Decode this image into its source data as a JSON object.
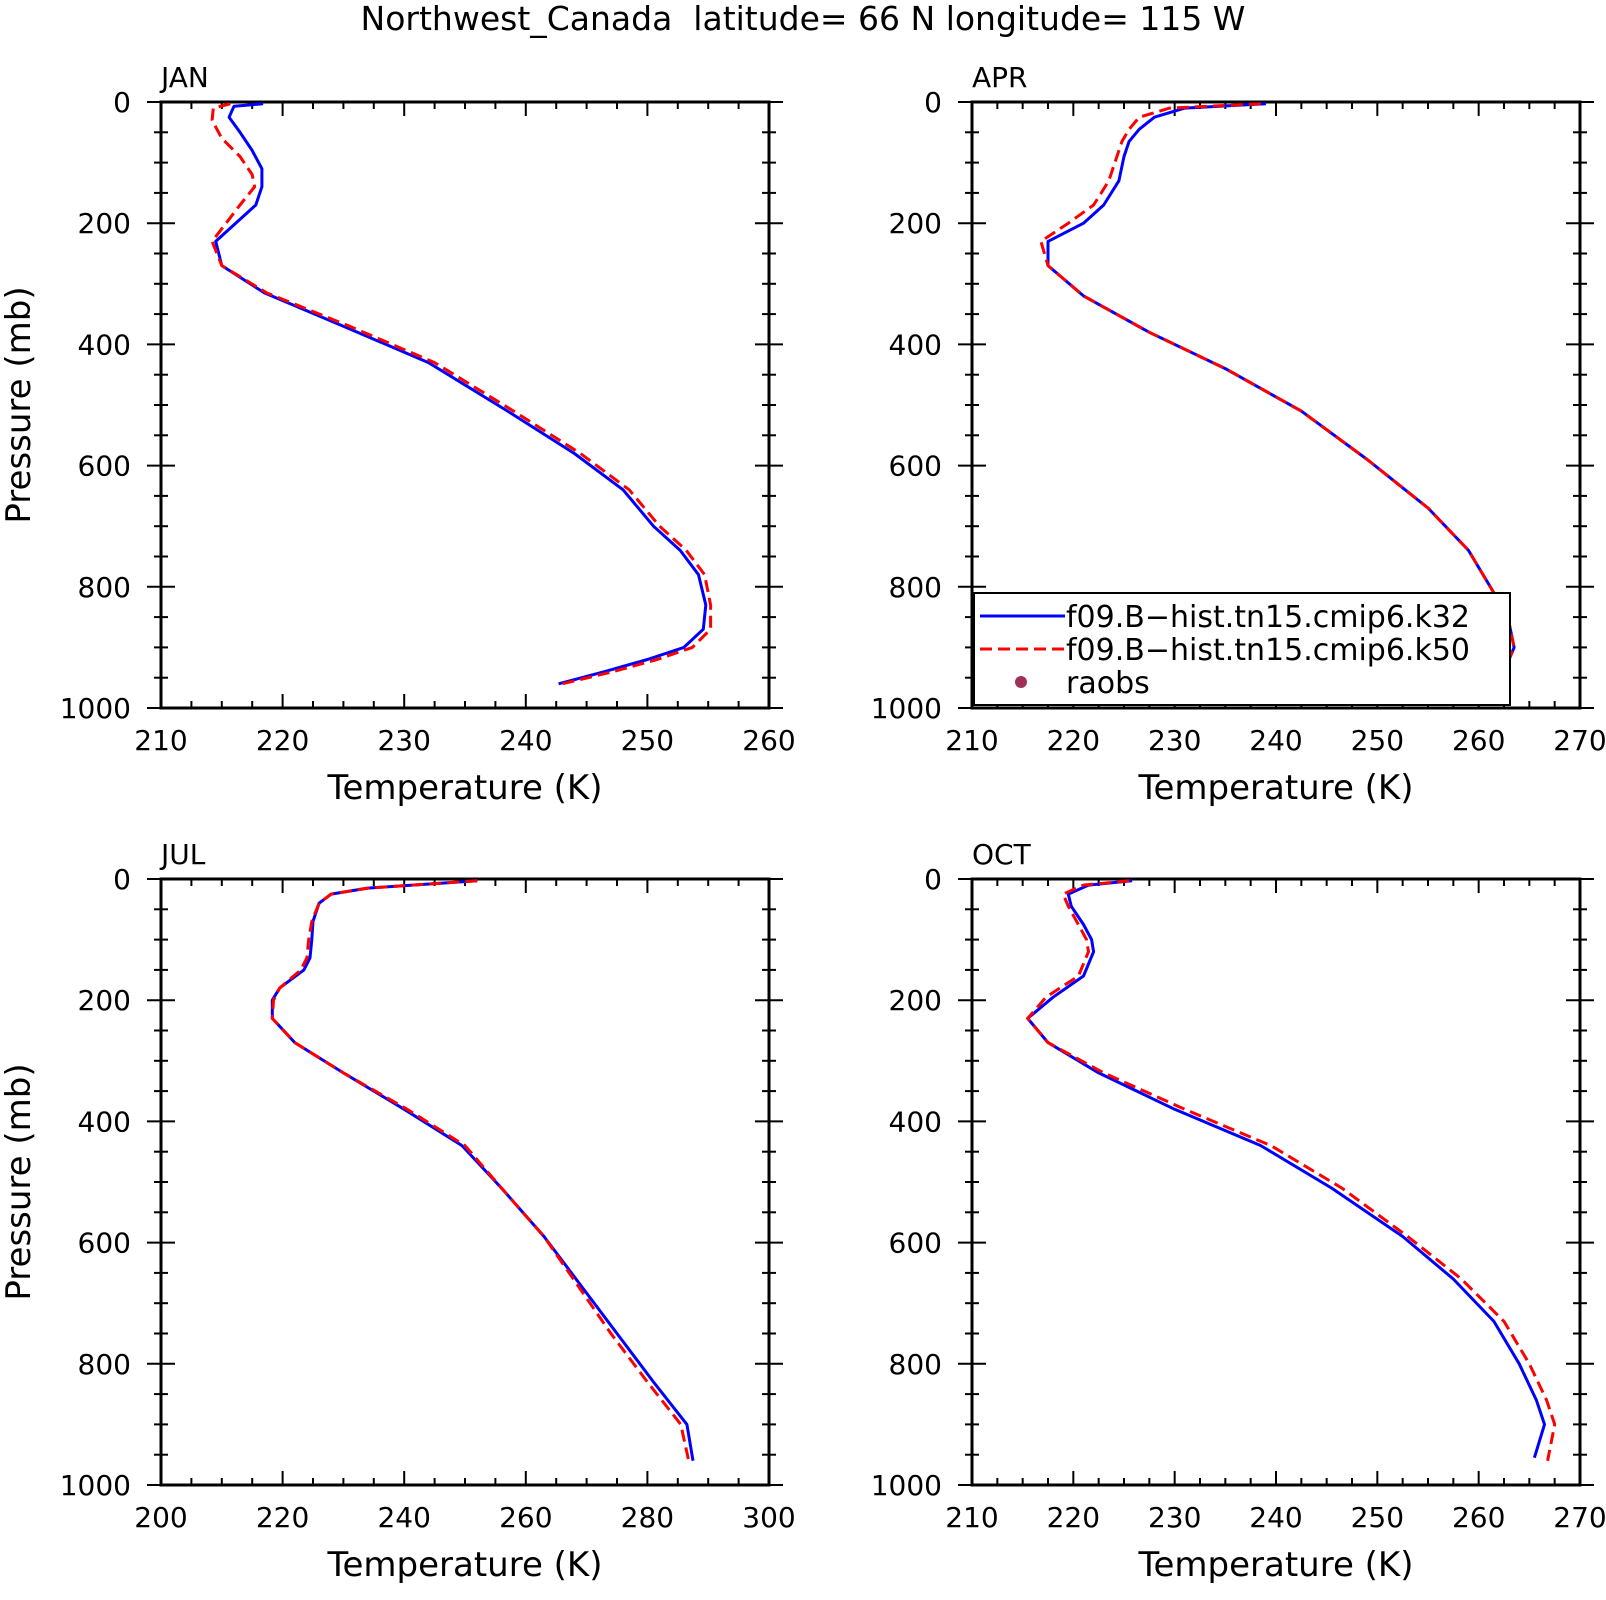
{
  "page_title": "Northwest_Canada  latitude= 66 N longitude= 115 W",
  "legend": {
    "entries": [
      {
        "label": "f09.B−hist.tn15.cmip6.k32",
        "color": "#0000ff",
        "style": "solid"
      },
      {
        "label": "f09.B−hist.tn15.cmip6.k50",
        "color": "#ff0000",
        "style": "dashed"
      },
      {
        "label": "raobs",
        "color": "#a0305a",
        "style": "marker"
      }
    ]
  },
  "chart_data": [
    {
      "type": "line",
      "title": "JAN",
      "xlabel": "Temperature (K)",
      "ylabel": "Pressure (mb)",
      "xlim": [
        210,
        260
      ],
      "ylim": [
        0,
        1000
      ],
      "y_inverted": true,
      "xticks": [
        210,
        220,
        230,
        240,
        250,
        260
      ],
      "yticks": [
        0,
        200,
        400,
        600,
        800,
        1000
      ],
      "series": [
        {
          "name": "f09.B−hist.tn15.cmip6.k32",
          "color": "#0000ff",
          "dash": false,
          "x": [
            218.4,
            216.0,
            215.6,
            216.5,
            217.5,
            218.3,
            218.3,
            217.8,
            214.5,
            215.0,
            218.5,
            225.0,
            232.0,
            238.5,
            244.0,
            248.0,
            250.5,
            252.7,
            254.2,
            254.8,
            254.6,
            253.0,
            250.0,
            246.5,
            242.7
          ],
          "y": [
            3,
            7,
            25,
            50,
            80,
            110,
            140,
            170,
            230,
            270,
            315,
            370,
            430,
            510,
            580,
            640,
            700,
            740,
            780,
            830,
            870,
            900,
            920,
            940,
            960
          ]
        },
        {
          "name": "f09.B−hist.tn15.cmip6.k50",
          "color": "#ff0000",
          "dash": true,
          "x": [
            215.7,
            214.3,
            214.2,
            215.0,
            216.5,
            217.5,
            217.7,
            216.5,
            214.2,
            215.0,
            218.7,
            225.5,
            232.5,
            239.0,
            244.5,
            248.5,
            251.0,
            253.2,
            254.7,
            255.2,
            255.2,
            253.7,
            250.8,
            247.2,
            243.0
          ],
          "y": [
            3,
            10,
            30,
            60,
            90,
            120,
            140,
            170,
            230,
            270,
            315,
            370,
            430,
            510,
            580,
            640,
            700,
            740,
            780,
            830,
            870,
            900,
            920,
            940,
            960
          ]
        }
      ]
    },
    {
      "type": "line",
      "title": "APR",
      "xlabel": "Temperature (K)",
      "ylabel": "",
      "xlim": [
        210,
        270
      ],
      "ylim": [
        0,
        1000
      ],
      "y_inverted": true,
      "xticks": [
        210,
        220,
        230,
        240,
        250,
        260,
        270
      ],
      "yticks": [
        0,
        200,
        400,
        600,
        800,
        1000
      ],
      "series": [
        {
          "name": "f09.B−hist.tn15.cmip6.k32",
          "color": "#0000ff",
          "dash": false,
          "x": [
            239.0,
            231.0,
            228.0,
            226.5,
            225.5,
            225.0,
            224.5,
            223.0,
            221.0,
            217.5,
            217.5,
            221.0,
            227.5,
            235.0,
            242.5,
            249.0,
            255.0,
            259.0,
            261.5,
            263.0,
            263.5,
            262.5,
            260.0
          ],
          "y": [
            3,
            10,
            25,
            45,
            65,
            90,
            130,
            170,
            200,
            230,
            270,
            320,
            380,
            440,
            510,
            590,
            670,
            740,
            810,
            860,
            900,
            940,
            965
          ]
        },
        {
          "name": "f09.B−hist.tn15.cmip6.k50",
          "color": "#ff0000",
          "dash": true,
          "x": [
            238.5,
            229.5,
            226.5,
            225.5,
            224.8,
            224.3,
            223.5,
            222.0,
            219.5,
            216.8,
            217.5,
            221.0,
            227.5,
            235.0,
            242.5,
            249.0,
            255.0,
            259.0,
            261.5,
            263.0,
            263.5,
            262.5,
            260.0
          ],
          "y": [
            3,
            10,
            25,
            45,
            65,
            90,
            130,
            170,
            200,
            230,
            270,
            320,
            380,
            440,
            510,
            590,
            670,
            740,
            810,
            860,
            900,
            940,
            965
          ]
        }
      ]
    },
    {
      "type": "line",
      "title": "JUL",
      "xlabel": "Temperature (K)",
      "ylabel": "Pressure (mb)",
      "xlim": [
        200,
        300
      ],
      "ylim": [
        0,
        1000
      ],
      "y_inverted": true,
      "xticks": [
        200,
        220,
        240,
        260,
        280,
        300
      ],
      "yticks": [
        0,
        200,
        400,
        600,
        800,
        1000
      ],
      "series": [
        {
          "name": "f09.B−hist.tn15.cmip6.k32",
          "color": "#0000ff",
          "dash": false,
          "x": [
            252.0,
            234.0,
            228.0,
            226.0,
            225.0,
            224.8,
            224.5,
            223.5,
            219.5,
            218.3,
            218.3,
            222.0,
            230.0,
            240.0,
            249.5,
            256.0,
            263.0,
            269.0,
            275.0,
            281.0,
            286.5,
            287.5
          ],
          "y": [
            3,
            15,
            25,
            40,
            70,
            100,
            130,
            150,
            180,
            200,
            230,
            270,
            320,
            380,
            440,
            510,
            590,
            670,
            750,
            830,
            900,
            960
          ]
        },
        {
          "name": "f09.B−hist.tn15.cmip6.k50",
          "color": "#ff0000",
          "dash": true,
          "x": [
            252.0,
            234.0,
            228.0,
            226.0,
            224.8,
            224.3,
            224.0,
            223.0,
            219.5,
            218.5,
            218.3,
            222.0,
            230.0,
            240.5,
            250.0,
            256.0,
            263.0,
            268.5,
            274.0,
            280.0,
            285.5,
            286.8
          ],
          "y": [
            3,
            15,
            25,
            40,
            70,
            100,
            130,
            150,
            180,
            200,
            230,
            270,
            320,
            380,
            440,
            510,
            590,
            670,
            750,
            830,
            900,
            960
          ]
        }
      ]
    },
    {
      "type": "line",
      "title": "OCT",
      "xlabel": "Temperature (K)",
      "ylabel": "",
      "xlim": [
        210,
        270
      ],
      "ylim": [
        0,
        1000
      ],
      "y_inverted": true,
      "xticks": [
        210,
        220,
        230,
        240,
        250,
        260,
        270
      ],
      "yticks": [
        0,
        200,
        400,
        600,
        800,
        1000
      ],
      "series": [
        {
          "name": "f09.B−hist.tn15.cmip6.k32",
          "color": "#0000ff",
          "dash": false,
          "x": [
            225.8,
            221.5,
            219.5,
            219.8,
            221.0,
            221.8,
            222.0,
            221.0,
            218.0,
            215.5,
            217.5,
            222.5,
            230.0,
            238.5,
            245.5,
            252.5,
            257.5,
            261.5,
            264.0,
            265.7,
            266.5,
            265.5
          ],
          "y": [
            3,
            10,
            25,
            45,
            75,
            100,
            120,
            160,
            195,
            230,
            270,
            320,
            380,
            440,
            510,
            590,
            660,
            730,
            800,
            860,
            900,
            955
          ]
        },
        {
          "name": "f09.B−hist.tn15.cmip6.k50",
          "color": "#ff0000",
          "dash": true,
          "x": [
            225.5,
            221.0,
            219.0,
            219.5,
            220.5,
            221.3,
            221.5,
            220.5,
            217.3,
            215.5,
            217.5,
            223.0,
            231.0,
            239.5,
            246.5,
            253.0,
            258.3,
            262.5,
            265.0,
            266.7,
            267.5,
            266.8
          ],
          "y": [
            3,
            10,
            25,
            45,
            75,
            100,
            120,
            160,
            195,
            230,
            270,
            320,
            380,
            440,
            510,
            590,
            660,
            730,
            800,
            860,
            900,
            960
          ]
        }
      ]
    }
  ]
}
